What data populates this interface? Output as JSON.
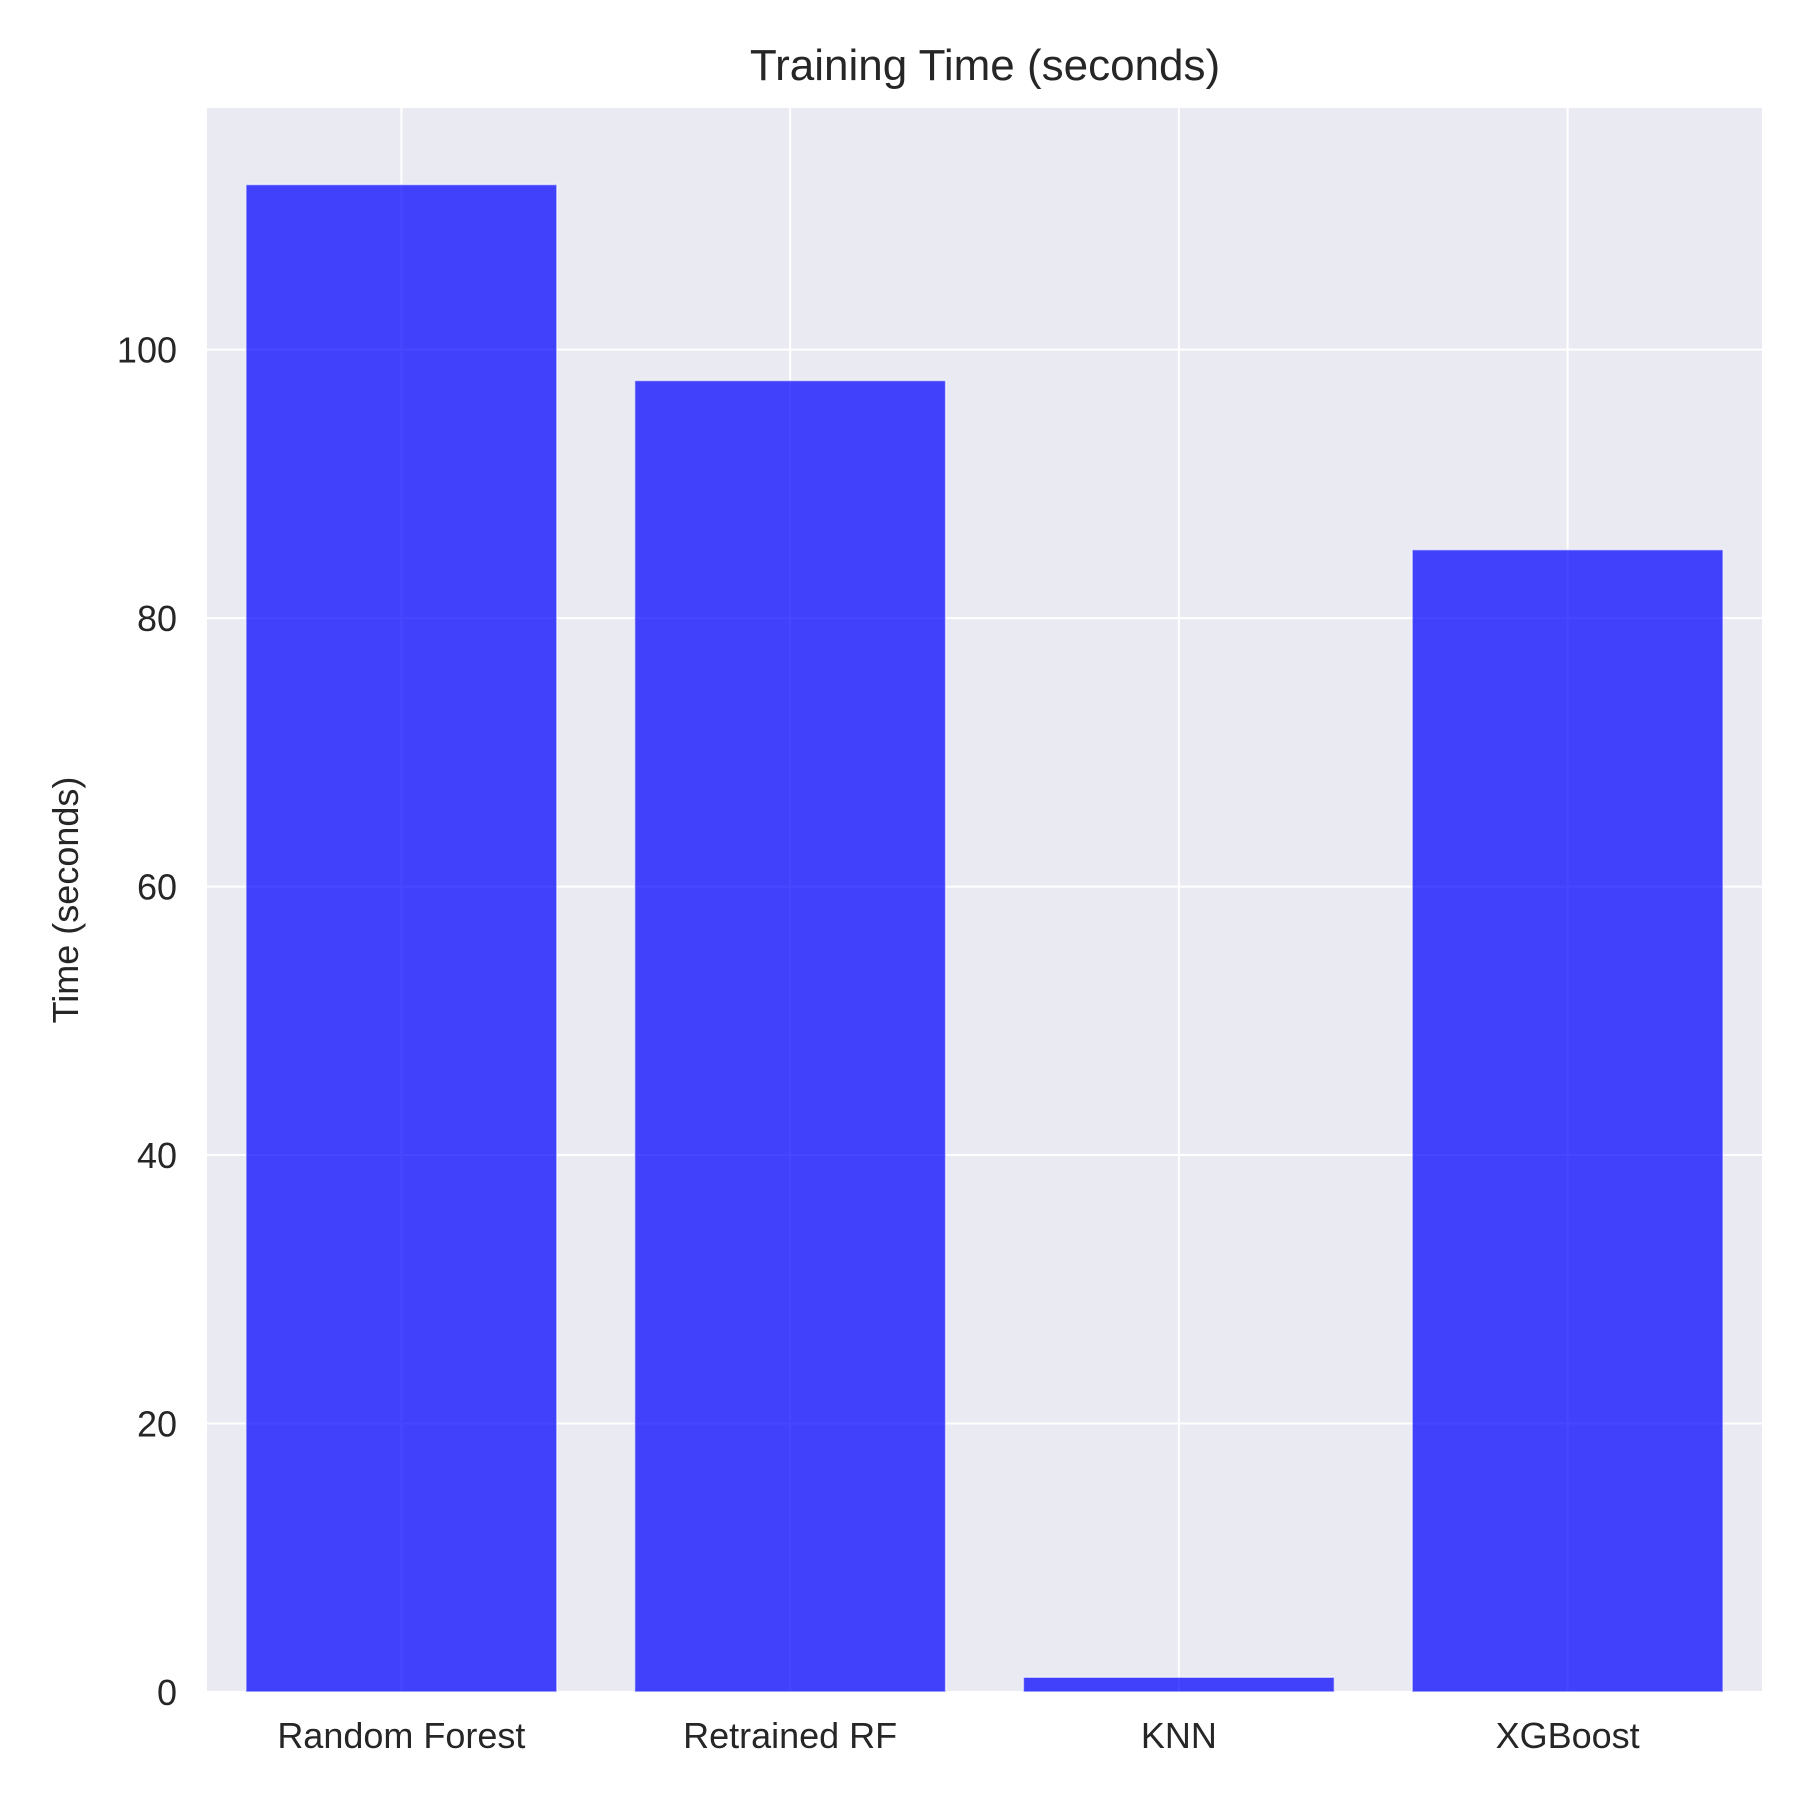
{
  "chart_data": {
    "type": "bar",
    "title": "Training Time (seconds)",
    "xlabel": "",
    "ylabel": "Time (seconds)",
    "categories": [
      "Random Forest",
      "Retrained RF",
      "KNN",
      "XGBoost"
    ],
    "values": [
      112.3,
      97.7,
      1.1,
      85.1
    ],
    "ylim": [
      0,
      118
    ],
    "yticks": [
      0,
      20,
      40,
      60,
      80,
      100
    ],
    "grid": true,
    "colors": {
      "bar": "#0000ff",
      "plot_background": "#eaeaf2",
      "grid": "#ffffff",
      "text": "#262626"
    }
  }
}
